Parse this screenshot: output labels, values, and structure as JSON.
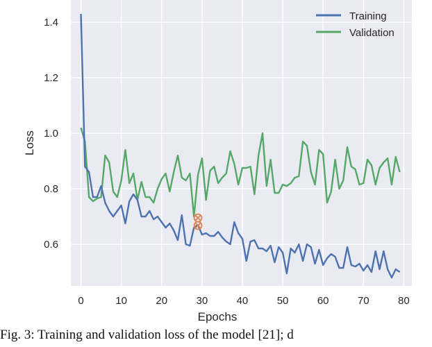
{
  "caption": "Fig. 3: Training and validation loss of the model [21]; d",
  "colors": {
    "training": "#4c72b0",
    "validation": "#55a868",
    "marker": "#dd8452",
    "plot_bg": "#eaeaf2",
    "grid": "#ffffff"
  },
  "chart_data": {
    "type": "line",
    "xlabel": "Epochs",
    "ylabel": "Loss",
    "xlim": [
      -2.5,
      82
    ],
    "ylim": [
      0.45,
      1.48
    ],
    "xticks": [
      0,
      10,
      20,
      30,
      40,
      50,
      60,
      70,
      80
    ],
    "yticks": [
      0.6,
      0.8,
      1.0,
      1.2,
      1.4
    ],
    "xtick_labels": [
      "0",
      "10",
      "20",
      "30",
      "40",
      "50",
      "60",
      "70",
      "80"
    ],
    "ytick_labels": [
      "0.6",
      "0.8",
      "1.0",
      "1.2",
      "1.4"
    ],
    "grid": true,
    "legend_position": "top-right",
    "series": [
      {
        "name": "Training",
        "color": "#4c72b0",
        "x": [
          0,
          1,
          2,
          3,
          4,
          5,
          6,
          7,
          8,
          9,
          10,
          11,
          12,
          13,
          14,
          15,
          16,
          17,
          18,
          19,
          20,
          21,
          22,
          23,
          24,
          25,
          26,
          27,
          28,
          29,
          30,
          31,
          32,
          33,
          34,
          35,
          36,
          37,
          38,
          39,
          40,
          41,
          42,
          43,
          44,
          45,
          46,
          47,
          48,
          49,
          50,
          51,
          52,
          53,
          54,
          55,
          56,
          57,
          58,
          59,
          60,
          61,
          62,
          63,
          64,
          65,
          66,
          67,
          68,
          69,
          70,
          71,
          72,
          73,
          74,
          75,
          76,
          77,
          78,
          79
        ],
        "values": [
          1.43,
          0.88,
          0.86,
          0.77,
          0.77,
          0.81,
          0.75,
          0.72,
          0.7,
          0.72,
          0.74,
          0.675,
          0.755,
          0.78,
          0.76,
          0.7,
          0.7,
          0.72,
          0.69,
          0.7,
          0.68,
          0.66,
          0.675,
          0.65,
          0.615,
          0.705,
          0.6,
          0.595,
          0.66,
          0.67,
          0.635,
          0.64,
          0.63,
          0.63,
          0.645,
          0.625,
          0.61,
          0.6,
          0.68,
          0.64,
          0.62,
          0.54,
          0.61,
          0.615,
          0.585,
          0.585,
          0.575,
          0.595,
          0.535,
          0.59,
          0.57,
          0.495,
          0.585,
          0.57,
          0.6,
          0.54,
          0.6,
          0.59,
          0.53,
          0.58,
          0.525,
          0.55,
          0.565,
          0.555,
          0.515,
          0.515,
          0.59,
          0.525,
          0.52,
          0.53,
          0.505,
          0.525,
          0.5,
          0.575,
          0.51,
          0.575,
          0.51,
          0.48,
          0.51,
          0.5
        ]
      },
      {
        "name": "Validation",
        "color": "#55a868",
        "x": [
          0,
          1,
          2,
          3,
          4,
          5,
          6,
          7,
          8,
          9,
          10,
          11,
          12,
          13,
          14,
          15,
          16,
          17,
          18,
          19,
          20,
          21,
          22,
          23,
          24,
          25,
          26,
          27,
          28,
          29,
          30,
          31,
          32,
          33,
          34,
          35,
          36,
          37,
          38,
          39,
          40,
          41,
          42,
          43,
          44,
          45,
          46,
          47,
          48,
          49,
          50,
          51,
          52,
          53,
          54,
          55,
          56,
          57,
          58,
          59,
          60,
          61,
          62,
          63,
          64,
          65,
          66,
          67,
          68,
          69,
          70,
          71,
          72,
          73,
          74,
          75,
          76,
          77,
          78,
          79
        ],
        "values": [
          1.02,
          0.97,
          0.77,
          0.755,
          0.765,
          0.77,
          0.92,
          0.895,
          0.79,
          0.77,
          0.83,
          0.94,
          0.82,
          0.855,
          0.76,
          0.825,
          0.77,
          0.77,
          0.75,
          0.8,
          0.835,
          0.855,
          0.79,
          0.86,
          0.92,
          0.84,
          0.83,
          0.855,
          0.7,
          0.85,
          0.91,
          0.76,
          0.865,
          0.88,
          0.82,
          0.84,
          0.855,
          0.935,
          0.89,
          0.815,
          0.875,
          0.875,
          0.88,
          0.78,
          0.92,
          1.0,
          0.81,
          0.905,
          0.785,
          0.785,
          0.815,
          0.81,
          0.82,
          0.84,
          0.845,
          0.97,
          0.955,
          0.86,
          0.815,
          0.94,
          0.925,
          0.75,
          0.79,
          0.905,
          0.8,
          0.83,
          0.95,
          0.88,
          0.87,
          0.815,
          0.82,
          0.905,
          0.885,
          0.815,
          0.875,
          0.895,
          0.91,
          0.815,
          0.915,
          0.86
        ]
      }
    ],
    "marker": {
      "x": 29,
      "y": 0.695,
      "color": "#dd8452"
    }
  }
}
